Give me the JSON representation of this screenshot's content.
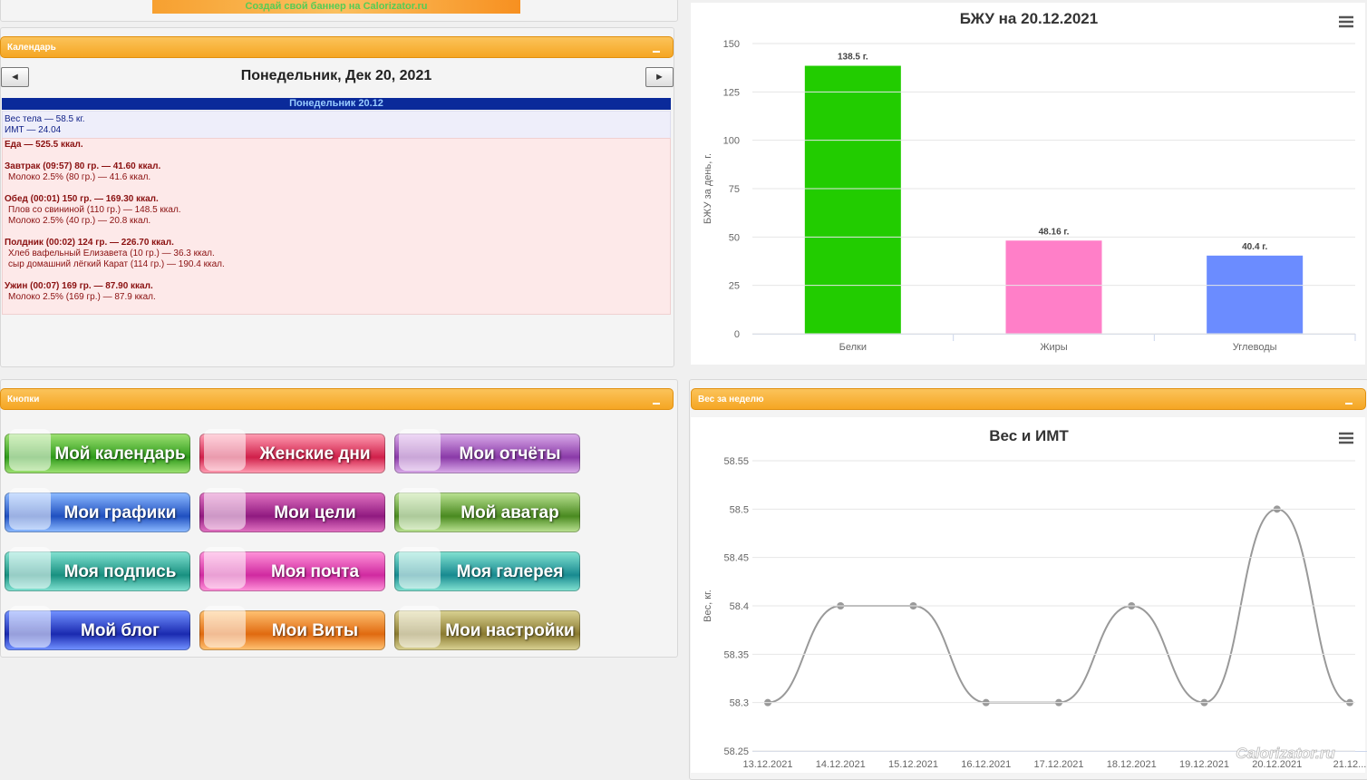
{
  "banner": "Создай свой баннер на Calorizator.ru",
  "calendar": {
    "title": "Календарь",
    "date": "Понедельник, Дек 20, 2021",
    "prev": "◄",
    "next": "►",
    "day": "Понедельник 20.12",
    "weight": "Вес тела — 58.5 кг.",
    "bmi": "ИМТ — 24.04",
    "food_total": "Еда — 525.5 ккал.",
    "meals": [
      {
        "title": "Завтрак (09:57) 80 гр. — 41.60 ккал.",
        "items": [
          "Молоко 2.5% (80 гр.) — 41.6 ккал."
        ]
      },
      {
        "title": "Обед (00:01) 150 гр. — 169.30 ккал.",
        "items": [
          "Плов со свининой (110 гр.) — 148.5 ккал.",
          "Молоко 2.5% (40 гр.) — 20.8 ккал."
        ]
      },
      {
        "title": "Полдник (00:02) 124 гр. — 226.70 ккал.",
        "items": [
          "Хлеб вафельный Елизавета (10 гр.) — 36.3 ккал.",
          "сыр домашний лёгкий Карат (114 гр.) — 190.4 ккал."
        ]
      },
      {
        "title": "Ужин (00:07) 169 гр. — 87.90 ккал.",
        "items": [
          "Молоко 2.5% (169 гр.) — 87.9 ккал."
        ]
      }
    ]
  },
  "buttons": {
    "title": "Кнопки",
    "items": [
      "Мой календарь",
      "Женские дни",
      "Мои отчёты",
      "Мои графики",
      "Мои цели",
      "Мой аватар",
      "Моя подпись",
      "Моя почта",
      "Моя галерея",
      "Мой блог",
      "Мои Виты",
      "Мои настройки"
    ]
  },
  "weight_panel_title": "Вес за неделю",
  "watermark": "Calorizator.ru",
  "chart_data": [
    {
      "type": "bar",
      "title": "БЖУ на 20.12.2021",
      "y_label": "БЖУ за день, г.",
      "categories": [
        "Белки",
        "Жиры",
        "Углеводы"
      ],
      "values": [
        138.5,
        48.16,
        40.4
      ],
      "value_labels": [
        "138.5 г.",
        "48.16 г.",
        "40.4 г."
      ],
      "colors": [
        "#22cc00",
        "#ff7fc8",
        "#6b8cff"
      ],
      "ylim": [
        0,
        150
      ],
      "yticks": [
        0,
        25,
        50,
        75,
        100,
        125,
        150
      ],
      "grid": true
    },
    {
      "type": "line",
      "title": "Вес и ИМТ",
      "y_label": "Вес, кг.",
      "categories": [
        "13.12.2021",
        "14.12.2021",
        "15.12.2021",
        "16.12.2021",
        "17.12.2021",
        "18.12.2021",
        "19.12.2021",
        "20.12.2021",
        "21.12..."
      ],
      "values": [
        58.3,
        58.4,
        58.4,
        58.3,
        58.3,
        58.4,
        58.3,
        58.5,
        58.3
      ],
      "color": "#999999",
      "ylim": [
        58.25,
        58.55
      ],
      "yticks": [
        58.25,
        58.3,
        58.35,
        58.4,
        58.45,
        58.5,
        58.55
      ],
      "grid": true
    }
  ]
}
